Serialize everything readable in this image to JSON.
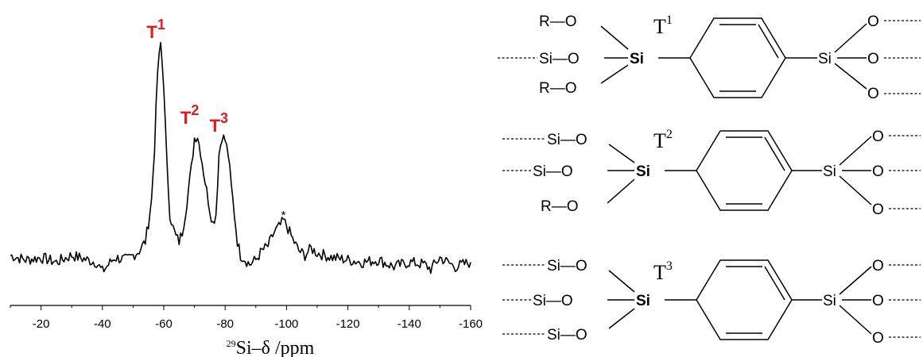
{
  "chart_data": {
    "type": "line",
    "title": "",
    "xlabel_prefix": "29",
    "xlabel_main": "Si–δ /ppm",
    "xlim": [
      -10,
      -160
    ],
    "ylim": [
      0,
      1
    ],
    "xticks": [
      -20,
      -40,
      -60,
      -80,
      -100,
      -120,
      -140,
      -160
    ],
    "grid": false,
    "series": [
      {
        "x": [
          -10,
          -15,
          -20,
          -25,
          -30,
          -35,
          -38,
          -40,
          -44,
          -48,
          -52,
          -54,
          -55,
          -56,
          -57,
          -58,
          -59,
          -60,
          -61,
          -62,
          -63,
          -64,
          -65,
          -66,
          -67,
          -68,
          -69,
          -70,
          -71,
          -72,
          -73,
          -74,
          -75,
          -76,
          -77,
          -78,
          -79,
          -80,
          -81,
          -82,
          -83,
          -84,
          -85,
          -86,
          -88,
          -90,
          -92,
          -94,
          -96,
          -98,
          -99,
          -100,
          -101,
          -102,
          -104,
          -106,
          -108,
          -110,
          -115,
          -120,
          -125,
          -130,
          -135,
          -140,
          -145,
          -147,
          -150,
          -155,
          -160
        ],
        "y": [
          0.08,
          0.06,
          0.07,
          0.05,
          0.08,
          0.06,
          0.05,
          0.01,
          0.07,
          0.06,
          0.1,
          0.14,
          0.22,
          0.32,
          0.55,
          0.88,
          1.0,
          0.82,
          0.48,
          0.26,
          0.2,
          0.16,
          0.14,
          0.18,
          0.26,
          0.36,
          0.46,
          0.59,
          0.6,
          0.53,
          0.44,
          0.36,
          0.28,
          0.22,
          0.26,
          0.52,
          0.6,
          0.58,
          0.52,
          0.38,
          0.26,
          0.14,
          0.08,
          0.07,
          0.04,
          0.06,
          0.1,
          0.12,
          0.18,
          0.21,
          0.23,
          0.21,
          0.18,
          0.15,
          0.1,
          0.08,
          0.11,
          0.09,
          0.07,
          0.06,
          0.05,
          0.06,
          0.03,
          0.05,
          0.04,
          0.02,
          0.07,
          0.03,
          0.05
        ]
      }
    ],
    "peaks": [
      {
        "label": "T",
        "sup": "1",
        "x": -59
      },
      {
        "label": "T",
        "sup": "2",
        "x": -70
      },
      {
        "label": "T",
        "sup": "3",
        "x": -79
      }
    ],
    "annotation": {
      "text": "*",
      "x": -99
    }
  },
  "structures": {
    "t1": {
      "label": "T",
      "sup": "1",
      "left": [
        "R—O",
        "Si—O",
        "R—O"
      ]
    },
    "t2": {
      "label": "T",
      "sup": "2",
      "left": [
        "Si—O",
        "Si—O",
        "R—O"
      ]
    },
    "t3": {
      "label": "T",
      "sup": "3",
      "left": [
        "Si—O",
        "Si—O",
        "Si—O"
      ]
    },
    "atoms": {
      "si": "Si",
      "o": "O",
      "r": "R"
    }
  }
}
